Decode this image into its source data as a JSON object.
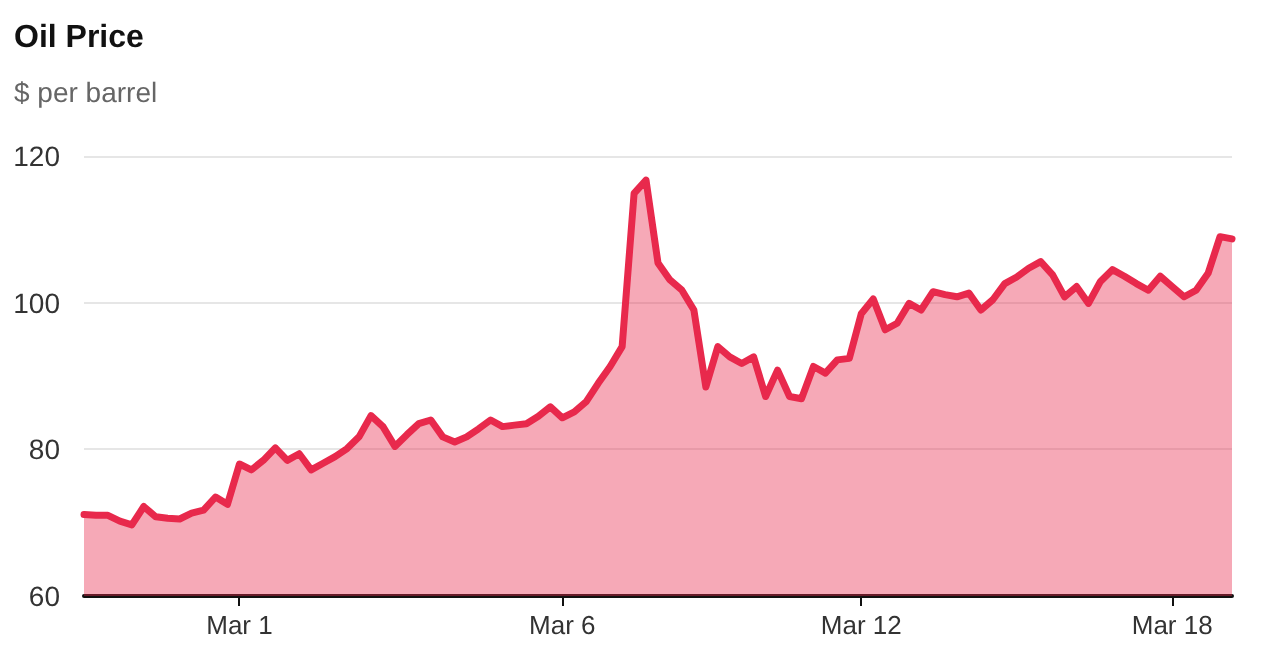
{
  "chart_data": {
    "type": "area",
    "title": "Oil Price",
    "subtitle": "$ per barrel",
    "categories": [
      null,
      null,
      null,
      null,
      null,
      null,
      null,
      null,
      null,
      null,
      null,
      null,
      null,
      "Mar 1",
      null,
      null,
      null,
      null,
      null,
      null,
      null,
      null,
      null,
      null,
      null,
      null,
      null,
      null,
      null,
      null,
      null,
      null,
      null,
      null,
      null,
      null,
      null,
      null,
      null,
      null,
      "Mar 6",
      null,
      null,
      null,
      null,
      null,
      null,
      null,
      null,
      null,
      null,
      null,
      null,
      null,
      null,
      null,
      null,
      null,
      null,
      null,
      null,
      null,
      null,
      null,
      null,
      "Mar 12",
      null,
      null,
      null,
      null,
      null,
      null,
      null,
      null,
      null,
      null,
      null,
      null,
      null,
      null,
      null,
      null,
      null,
      null,
      null,
      null,
      null,
      null,
      null,
      null,
      null,
      "Mar 18",
      null,
      null,
      null,
      null,
      null
    ],
    "series": [
      {
        "color": "#e8294c",
        "values": [
          71.1,
          71.0,
          71.0,
          70.2,
          69.7,
          72.2,
          70.8,
          70.6,
          70.5,
          71.3,
          71.7,
          73.5,
          72.5,
          78.0,
          77.2,
          78.5,
          80.2,
          78.5,
          79.4,
          77.2,
          78.1,
          79.0,
          80.1,
          81.7,
          84.6,
          83.1,
          80.4,
          82.0,
          83.5,
          84.0,
          81.7,
          81.0,
          81.7,
          82.8,
          84.0,
          83.1,
          83.3,
          83.5,
          84.5,
          85.8,
          84.3,
          85.1,
          86.5,
          89.0,
          91.3,
          94.0,
          114.9,
          116.7,
          105.4,
          103.1,
          101.7,
          99.0,
          88.5,
          94.0,
          92.6,
          91.7,
          92.6,
          87.2,
          90.8,
          87.2,
          86.9,
          91.3,
          90.4,
          92.2,
          92.4,
          98.5,
          100.5,
          96.3,
          97.2,
          99.9,
          99.0,
          101.5,
          101.1,
          100.8,
          101.3,
          99.0,
          100.4,
          102.6,
          103.5,
          104.7,
          105.6,
          103.8,
          100.8,
          102.2,
          99.9,
          102.9,
          104.5,
          103.6,
          102.6,
          101.7,
          103.6,
          102.2,
          100.8,
          101.7,
          104.0,
          109.0,
          108.7
        ]
      }
    ],
    "ylim": [
      60,
      120
    ],
    "yticks": [
      60,
      80,
      100,
      120
    ],
    "grid": "y"
  }
}
